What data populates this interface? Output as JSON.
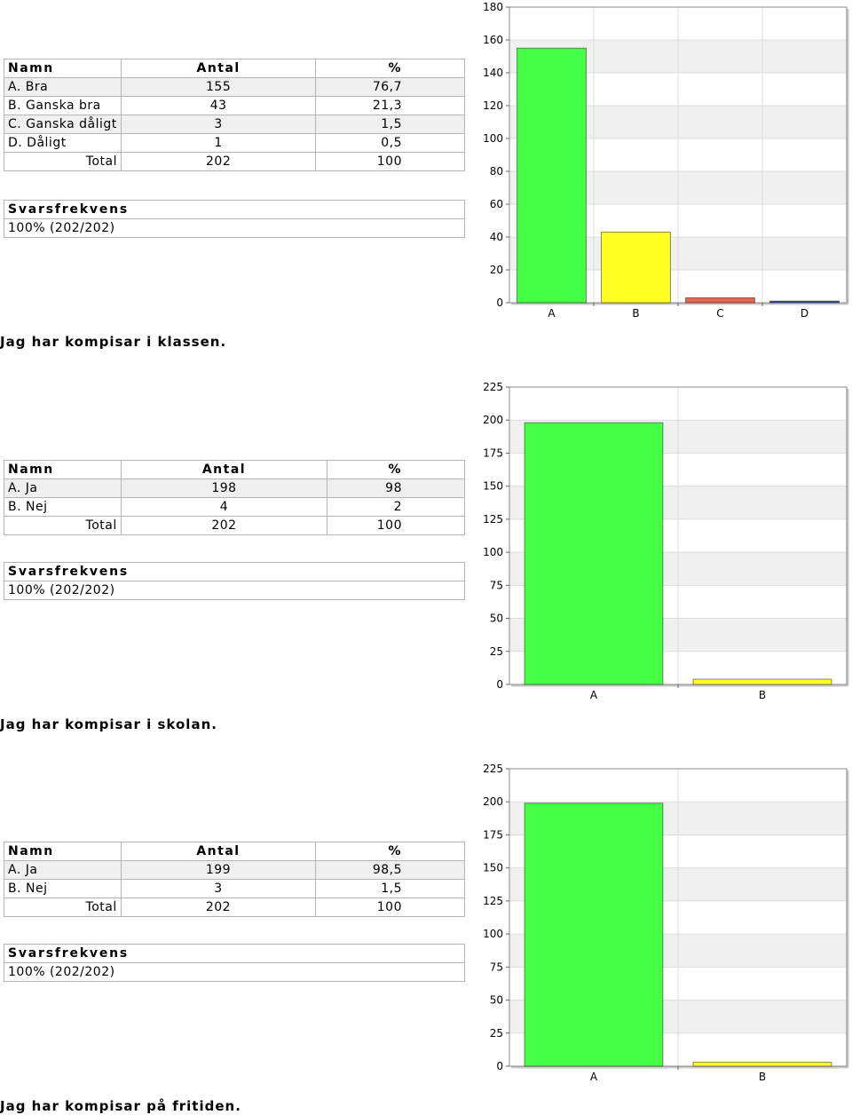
{
  "sections": [
    {
      "question": "Jag har kompisar i klassen.",
      "table": {
        "headers": {
          "name": "Namn",
          "count": "Antal",
          "percent": "%"
        },
        "rows": [
          {
            "name": "A. Bra",
            "count": "155",
            "percent": "76,7"
          },
          {
            "name": "B. Ganska bra",
            "count": "43",
            "percent": "21,3"
          },
          {
            "name": "C. Ganska dåligt",
            "count": "3",
            "percent": "1,5"
          },
          {
            "name": "D. Dåligt",
            "count": "1",
            "percent": "0,5"
          }
        ],
        "total": {
          "label": "Total",
          "count": "202",
          "percent": "100"
        }
      },
      "response": {
        "label": "Svarsfrekvens",
        "value": "100% (202/202)"
      }
    },
    {
      "question": "Jag har kompisar i skolan.",
      "table": {
        "headers": {
          "name": "Namn",
          "count": "Antal",
          "percent": "%"
        },
        "rows": [
          {
            "name": "A. Ja",
            "count": "198",
            "percent": "98"
          },
          {
            "name": "B. Nej",
            "count": "4",
            "percent": "2"
          }
        ],
        "total": {
          "label": "Total",
          "count": "202",
          "percent": "100"
        }
      },
      "response": {
        "label": "Svarsfrekvens",
        "value": "100% (202/202)"
      }
    },
    {
      "question": "Jag har kompisar på fritiden.",
      "table": {
        "headers": {
          "name": "Namn",
          "count": "Antal",
          "percent": "%"
        },
        "rows": [
          {
            "name": "A. Ja",
            "count": "199",
            "percent": "98,5"
          },
          {
            "name": "B. Nej",
            "count": "3",
            "percent": "1,5"
          }
        ],
        "total": {
          "label": "Total",
          "count": "202",
          "percent": "100"
        }
      },
      "response": {
        "label": "Svarsfrekvens",
        "value": "100% (202/202)"
      }
    }
  ],
  "chart_data": [
    {
      "type": "bar",
      "categories": [
        "A",
        "B",
        "C",
        "D"
      ],
      "values": [
        155,
        43,
        3,
        1
      ],
      "ylim": [
        0,
        180
      ],
      "yticks": [
        0,
        20,
        40,
        60,
        80,
        100,
        120,
        140,
        160,
        180
      ],
      "colors": [
        "#44ff44",
        "#ffff22",
        "#e8664a",
        "#3355aa"
      ],
      "grid": true
    },
    {
      "type": "bar",
      "categories": [
        "A",
        "B"
      ],
      "values": [
        198,
        4
      ],
      "ylim": [
        0,
        225
      ],
      "yticks": [
        0,
        25,
        50,
        75,
        100,
        125,
        150,
        175,
        200,
        225
      ],
      "colors": [
        "#44ff44",
        "#ffff22"
      ],
      "grid": true
    },
    {
      "type": "bar",
      "categories": [
        "A",
        "B"
      ],
      "values": [
        199,
        3
      ],
      "ylim": [
        0,
        225
      ],
      "yticks": [
        0,
        25,
        50,
        75,
        100,
        125,
        150,
        175,
        200,
        225
      ],
      "colors": [
        "#44ff44",
        "#ffff22"
      ],
      "grid": true
    }
  ]
}
